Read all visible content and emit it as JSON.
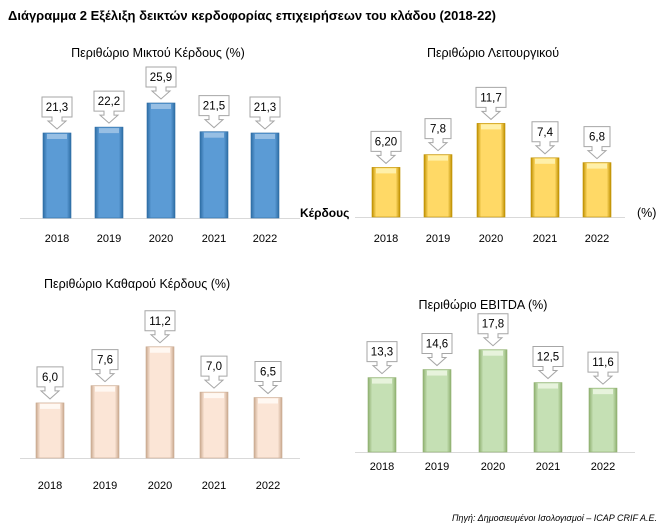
{
  "title": "Διάγραμμα 2 Εξέλιξη δεικτών κερδοφορίας επιχειρήσεων του κλάδου (2018-22)",
  "source": "Πηγή: Δημοσιευμένοι Ισολογισμοί – ICAP CRIF A.E.",
  "chart_data": [
    {
      "type": "bar",
      "title": "Περιθώριο Μικτού Κέρδους (%)",
      "categories": [
        "2018",
        "2019",
        "2020",
        "2021",
        "2022"
      ],
      "values": [
        21.3,
        22.2,
        25.9,
        21.5,
        21.3
      ],
      "labels": [
        "21,3",
        "22,2",
        "25,9",
        "21,5",
        "21,3"
      ],
      "color": "#5b9bd5",
      "grid": false
    },
    {
      "type": "bar",
      "title": "Περιθώριο Λειτουργικού",
      "title_extra_left": "Κέρδους",
      "title_extra_right": "(%)",
      "categories": [
        "2018",
        "2019",
        "2020",
        "2021",
        "2022"
      ],
      "values": [
        6.2,
        7.8,
        11.7,
        7.4,
        6.8
      ],
      "labels": [
        "6,20",
        "7,8",
        "11,7",
        "7,4",
        "6,8"
      ],
      "color": "#ffd966",
      "grid": false
    },
    {
      "type": "bar",
      "title": "Περιθώριο Καθαρού Κέρδους (%)",
      "categories": [
        "2018",
        "2019",
        "2020",
        "2021",
        "2022"
      ],
      "values": [
        6.0,
        7.6,
        11.2,
        7.0,
        6.5
      ],
      "labels": [
        "6,0",
        "7,6",
        "11,2",
        "7,0",
        "6,5"
      ],
      "color": "#fbe5d6",
      "grid": false
    },
    {
      "type": "bar",
      "title": "Περιθώριο EBITDA (%)",
      "categories": [
        "2018",
        "2019",
        "2020",
        "2021",
        "2022"
      ],
      "values": [
        13.3,
        14.6,
        17.8,
        12.5,
        11.6
      ],
      "labels": [
        "13,3",
        "14,6",
        "17,8",
        "12,5",
        "11,6"
      ],
      "color": "#c5e0b4",
      "grid": false
    }
  ]
}
